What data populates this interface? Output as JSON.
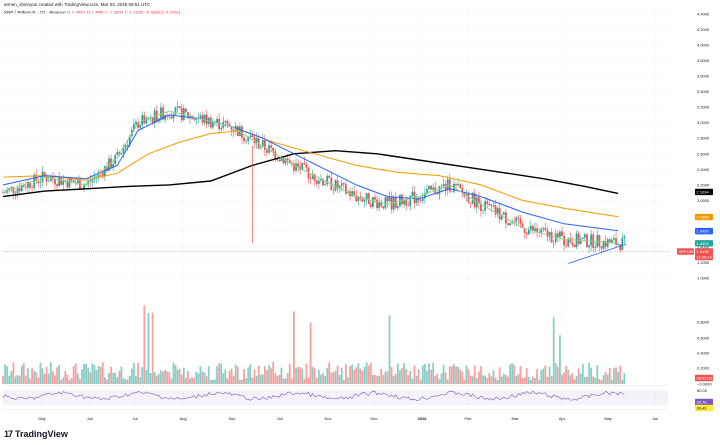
{
  "header": {
    "author_line": "armen_shirinyan created with TradingView.com, Mar 03, 2026 09:51 UTC",
    "symbol_line": "XRP / TetherUS · 1D · Binance",
    "ohlc": "O 1.3981  H 1.3992  L 1.3402  C 1.3435  −0.0445 (−3.20%)"
  },
  "brand": {
    "logo_mark": "17",
    "name": "TradingView"
  },
  "colors": {
    "up": "#26a69a",
    "down": "#ef5350",
    "ma_black": "#000000",
    "ma_orange": "#f29a00",
    "ma_blue": "#2962ff",
    "ma_green": "#8fd18f",
    "trendline": "#2962ff",
    "rsi_line": "#7e57c2"
  },
  "chart_data": {
    "type": "candlestick",
    "title": "XRP / TetherUS · 1D · Binance",
    "x": [
      "May",
      "Jun",
      "Jul",
      "Aug",
      "Sep",
      "Oct",
      "Nov",
      "Dec",
      "2026",
      "Feb",
      "Mar",
      "Apr",
      "May",
      "Jun"
    ],
    "price_axis_ticks": [
      "4.4000",
      "4.2000",
      "4.0000",
      "3.8000",
      "3.6000",
      "3.4000",
      "3.2000",
      "3.0000",
      "2.8000",
      "2.6000",
      "2.4000",
      "2.2000",
      "2.0000",
      "1.8000",
      "1.6000",
      "1.4000",
      "1.2000",
      "1.0000"
    ],
    "price_range": [
      0.9,
      4.5
    ],
    "volume_axis_ticks": [
      "0.8000",
      "0.6000",
      "0.4000",
      "0.2000",
      "−0.0000"
    ],
    "rsi_axis_ticks": [
      "80.00"
    ],
    "price_labels": [
      {
        "text": "2.1094",
        "value": 2.1094,
        "color": "#000000"
      },
      {
        "text": "1.7868",
        "value": 1.7868,
        "color": "#f29a00"
      },
      {
        "text": "1.6055",
        "value": 1.6055,
        "color": "#2962ff"
      },
      {
        "text": "1.4494",
        "value": 1.4494,
        "color": "#26a69a"
      },
      {
        "text": "1.3435",
        "value": 1.3435,
        "color": "#ef5350"
      }
    ],
    "last_price_label": "XRPUSDT",
    "countdown": "11:08:14",
    "volume_label": "48.921M",
    "rsi_labels": [
      "34.78",
      "39.49"
    ],
    "moving_averages": [
      {
        "color": "#000000",
        "points": [
          [
            0,
            2.05
          ],
          [
            20,
            2.12
          ],
          [
            40,
            2.15
          ],
          [
            60,
            2.18
          ],
          [
            80,
            2.2
          ],
          [
            100,
            2.25
          ],
          [
            120,
            2.45
          ],
          [
            140,
            2.6
          ],
          [
            160,
            2.64
          ],
          [
            180,
            2.6
          ],
          [
            200,
            2.52
          ],
          [
            220,
            2.44
          ],
          [
            240,
            2.36
          ],
          [
            260,
            2.28
          ],
          [
            280,
            2.18
          ],
          [
            296,
            2.09
          ]
        ]
      },
      {
        "color": "#f29a00",
        "points": [
          [
            0,
            2.3
          ],
          [
            20,
            2.32
          ],
          [
            40,
            2.26
          ],
          [
            55,
            2.35
          ],
          [
            70,
            2.6
          ],
          [
            85,
            2.75
          ],
          [
            100,
            2.86
          ],
          [
            115,
            2.9
          ],
          [
            130,
            2.75
          ],
          [
            150,
            2.6
          ],
          [
            170,
            2.45
          ],
          [
            190,
            2.36
          ],
          [
            210,
            2.32
          ],
          [
            230,
            2.2
          ],
          [
            250,
            2.0
          ],
          [
            270,
            1.9
          ],
          [
            296,
            1.79
          ]
        ]
      },
      {
        "color": "#2962ff",
        "points": [
          [
            0,
            2.2
          ],
          [
            20,
            2.32
          ],
          [
            40,
            2.28
          ],
          [
            55,
            2.45
          ],
          [
            65,
            2.9
          ],
          [
            80,
            3.1
          ],
          [
            95,
            3.05
          ],
          [
            110,
            2.95
          ],
          [
            125,
            2.8
          ],
          [
            140,
            2.6
          ],
          [
            155,
            2.4
          ],
          [
            170,
            2.2
          ],
          [
            185,
            2.05
          ],
          [
            200,
            2.02
          ],
          [
            215,
            2.15
          ],
          [
            230,
            2.05
          ],
          [
            250,
            1.85
          ],
          [
            270,
            1.7
          ],
          [
            296,
            1.61
          ]
        ]
      },
      {
        "color": "#8fd18f",
        "points": [
          [
            0,
            2.1
          ],
          [
            20,
            2.3
          ],
          [
            40,
            2.2
          ],
          [
            55,
            2.55
          ],
          [
            65,
            3.0
          ],
          [
            80,
            3.15
          ],
          [
            95,
            3.05
          ],
          [
            110,
            2.95
          ],
          [
            125,
            2.7
          ],
          [
            140,
            2.45
          ],
          [
            155,
            2.25
          ],
          [
            170,
            2.05
          ],
          [
            185,
            1.95
          ],
          [
            200,
            2.05
          ],
          [
            215,
            2.2
          ],
          [
            230,
            1.95
          ],
          [
            250,
            1.65
          ],
          [
            270,
            1.5
          ],
          [
            296,
            1.45
          ]
        ]
      }
    ],
    "trendlines": [
      {
        "from": [
          272,
          1.19
        ],
        "to": [
          300,
          1.44
        ]
      }
    ],
    "vertical_markers": [
      120
    ]
  }
}
